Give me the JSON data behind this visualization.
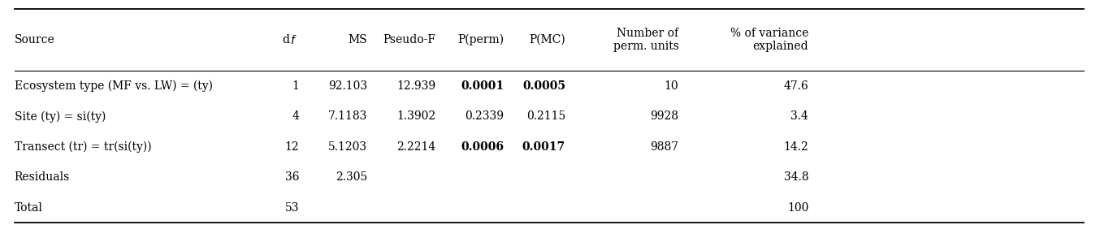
{
  "col_headers_left": [
    "Source",
    "d",
    "MS",
    "Pseudo-F",
    "P(perm)",
    "P(MC)",
    "Number of\nperm. units",
    "% of variance\nexplained"
  ],
  "rows": [
    {
      "source": "Ecosystem type (MF vs. LW) = (ty)",
      "df": "1",
      "ms": "92.103",
      "pseudo_f": "12.939",
      "p_perm": "0.0001",
      "p_mc": "0.0005",
      "n_perm": "10",
      "pct_var": "47.6",
      "bold_p_perm": true,
      "bold_p_mc": true
    },
    {
      "source": "Site (ty) = si(ty)",
      "df": "4",
      "ms": "7.1183",
      "pseudo_f": "1.3902",
      "p_perm": "0.2339",
      "p_mc": "0.2115",
      "n_perm": "9928",
      "pct_var": "3.4",
      "bold_p_perm": false,
      "bold_p_mc": false
    },
    {
      "source": "Transect (tr) = tr(si(ty))",
      "df": "12",
      "ms": "5.1203",
      "pseudo_f": "2.2214",
      "p_perm": "0.0006",
      "p_mc": "0.0017",
      "n_perm": "9887",
      "pct_var": "14.2",
      "bold_p_perm": true,
      "bold_p_mc": true
    },
    {
      "source": "Residuals",
      "df": "36",
      "ms": "2.305",
      "pseudo_f": "",
      "p_perm": "",
      "p_mc": "",
      "n_perm": "",
      "pct_var": "34.8",
      "bold_p_perm": false,
      "bold_p_mc": false
    },
    {
      "source": "Total",
      "df": "53",
      "ms": "",
      "pseudo_f": "",
      "p_perm": "",
      "p_mc": "",
      "n_perm": "",
      "pct_var": "100",
      "bold_p_perm": false,
      "bold_p_mc": false
    }
  ],
  "bg_color": "#ffffff",
  "text_color": "#000000",
  "fontsize": 10.0
}
